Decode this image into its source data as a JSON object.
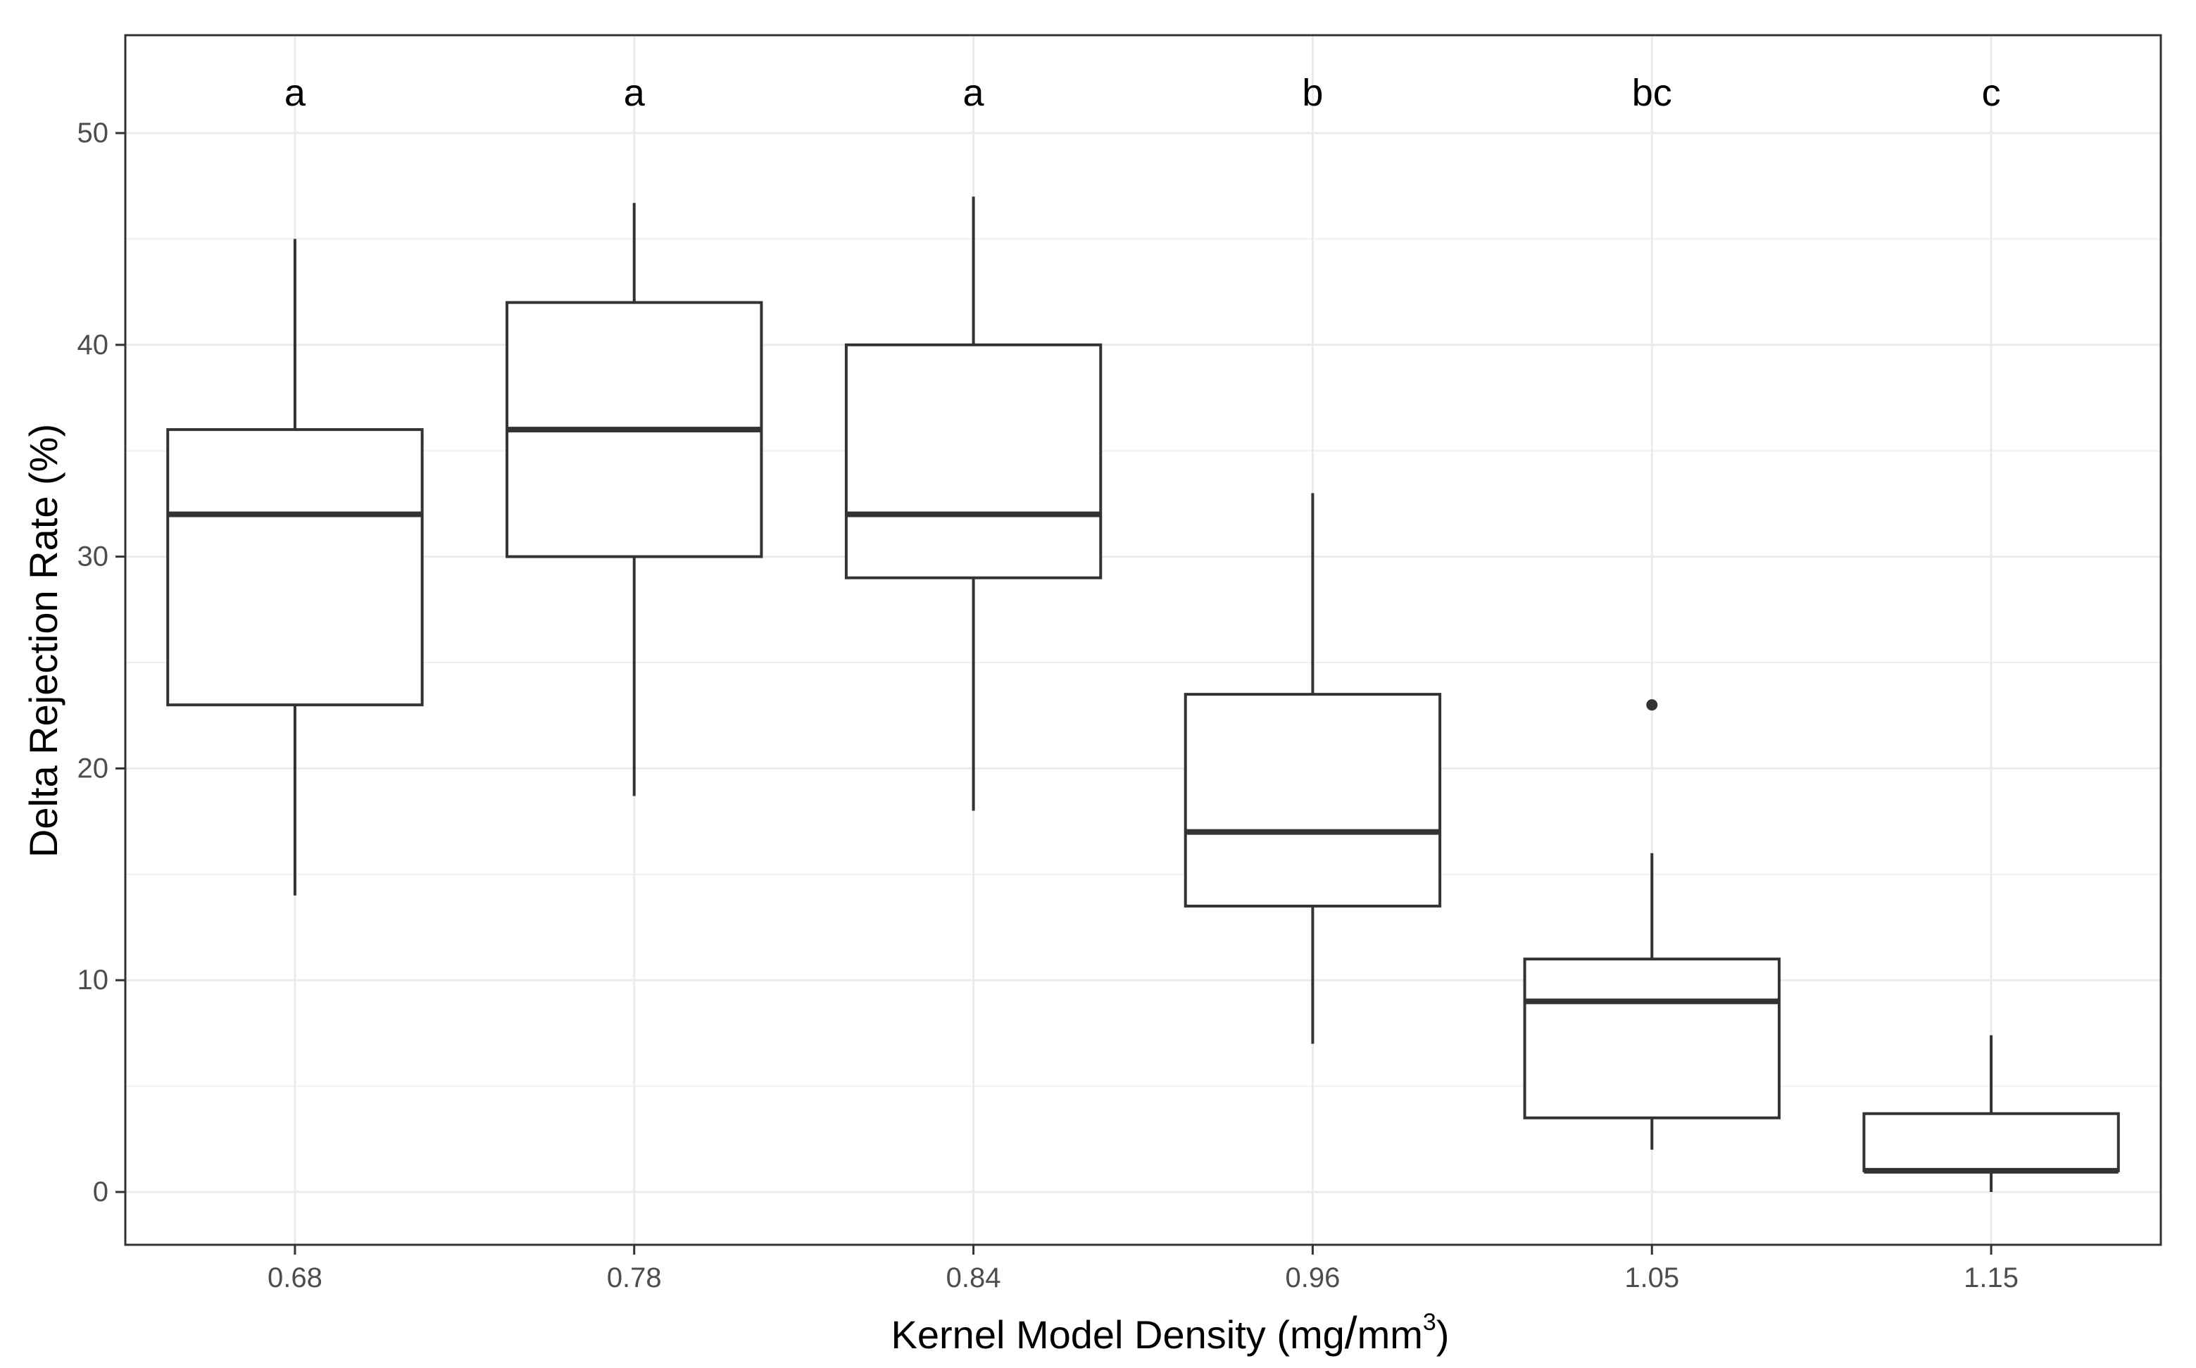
{
  "chart_data": {
    "type": "boxplot",
    "title": "",
    "xlabel": "Kernel Model Density (mg/mm³)",
    "xlabel_main": "Kernel Model Density ",
    "xlabel_unit_open": "(mg",
    "xlabel_unit_slash": "/",
    "xlabel_unit_mm": "mm",
    "xlabel_unit_exp": "3",
    "xlabel_unit_close": ")",
    "ylabel": "Delta Rejection Rate (%)",
    "ylim": [
      -2.5,
      55
    ],
    "yticks": [
      0,
      10,
      20,
      30,
      40,
      50
    ],
    "ytick_labels": [
      "0",
      "10",
      "20",
      "30",
      "40",
      "50"
    ],
    "grid": true,
    "categories": [
      "0.68",
      "0.78",
      "0.84",
      "0.96",
      "1.05",
      "1.15"
    ],
    "boxes": [
      {
        "category": "0.68",
        "whisker_low": 14,
        "q1": 23,
        "median": 32,
        "q3": 36,
        "whisker_high": 45,
        "outliers": [],
        "group": "a"
      },
      {
        "category": "0.78",
        "whisker_low": 18.7,
        "q1": 30,
        "median": 36,
        "q3": 42,
        "whisker_high": 46.7,
        "outliers": [],
        "group": "a"
      },
      {
        "category": "0.84",
        "whisker_low": 18,
        "q1": 29,
        "median": 32,
        "q3": 40,
        "whisker_high": 47,
        "outliers": [],
        "group": "a"
      },
      {
        "category": "0.96",
        "whisker_low": 7,
        "q1": 13.5,
        "median": 17,
        "q3": 23.5,
        "whisker_high": 33,
        "outliers": [],
        "group": "b"
      },
      {
        "category": "1.05",
        "whisker_low": 2,
        "q1": 3.5,
        "median": 9,
        "q3": 11,
        "whisker_high": 16,
        "outliers": [
          23
        ],
        "group": "bc"
      },
      {
        "category": "1.15",
        "whisker_low": 0,
        "q1": 1,
        "median": 1,
        "q3": 3.7,
        "whisker_high": 7.4,
        "outliers": [],
        "group": "c"
      }
    ]
  }
}
